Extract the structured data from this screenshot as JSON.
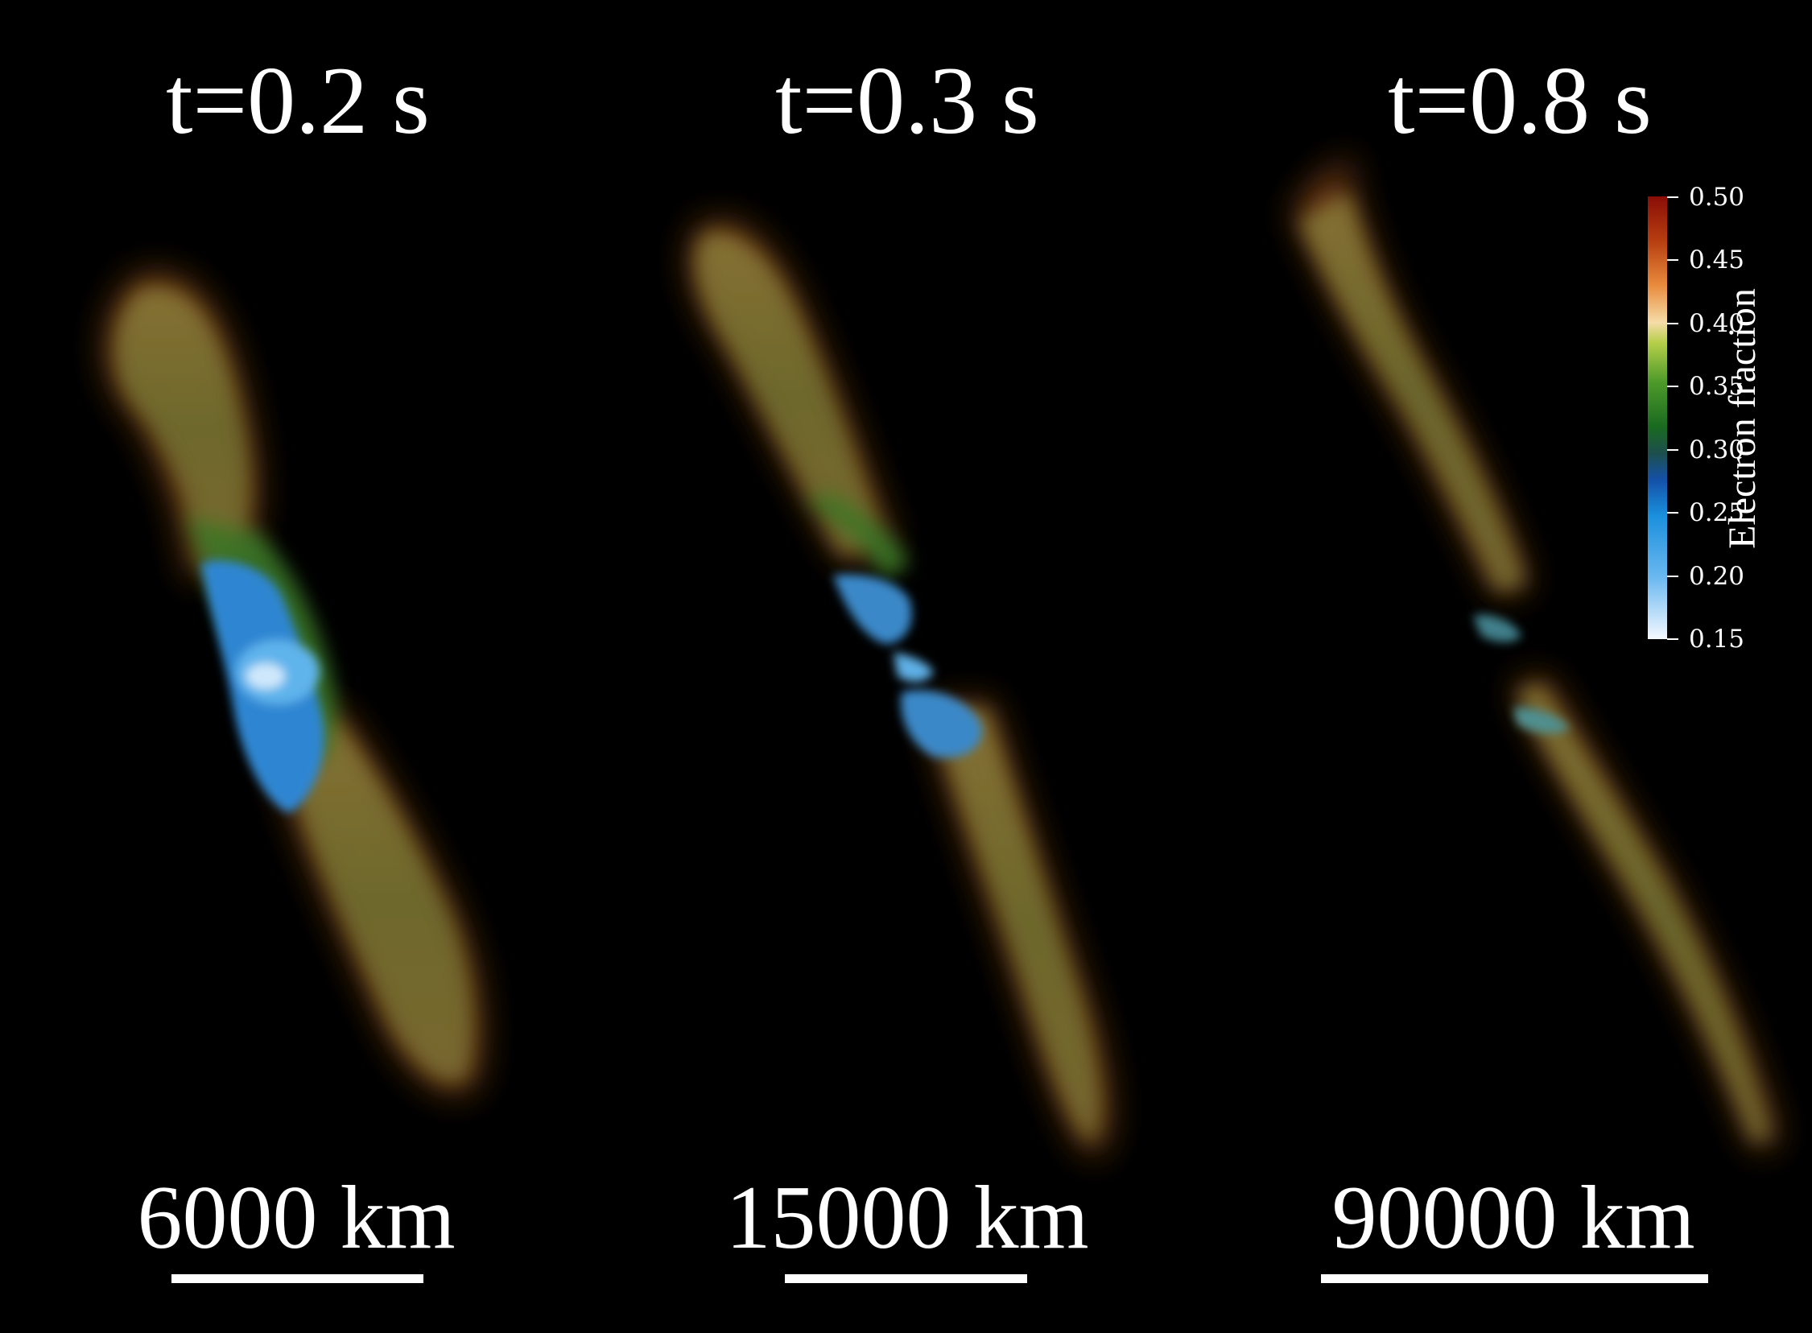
{
  "panels": [
    {
      "title": "t=0.2 s",
      "scale_label": "6000 km"
    },
    {
      "title": "t=0.3 s",
      "scale_label": "15000 km"
    },
    {
      "title": "t=0.8 s",
      "scale_label": "90000 km"
    }
  ],
  "colorbar": {
    "title": "Electron fraction",
    "ticks": [
      "0.50",
      "0.45",
      "0.40",
      "0.35",
      "0.30",
      "0.25",
      "0.20",
      "0.15"
    ],
    "range": [
      0.15,
      0.5
    ]
  },
  "colors": {
    "background": "#000000",
    "jet_outer": "#6a5a22",
    "jet_green": "#3c7a2a",
    "jet_core_blue": "#2f8fd6",
    "edge_red": "#7a2a14"
  }
}
